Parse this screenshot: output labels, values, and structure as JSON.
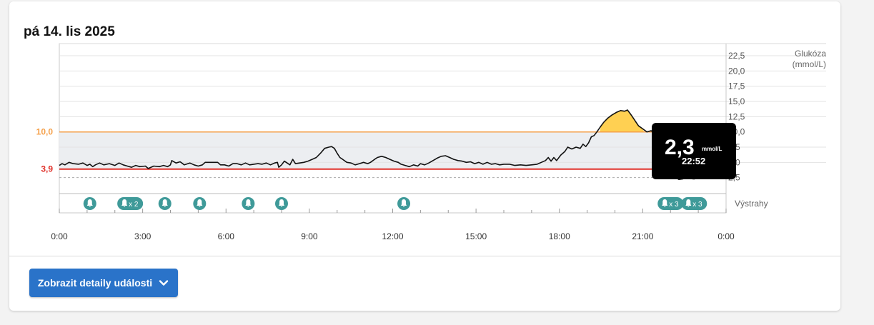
{
  "header": {
    "date_title": "pá 14. lis 2025"
  },
  "button": {
    "label": "Zobrazit detaily události"
  },
  "tooltip": {
    "value": "2,3",
    "unit": "mmol/L",
    "time": "22:52"
  },
  "colors": {
    "range_fill": "#eceef1",
    "high_line": "#f5a04a",
    "low_line": "#e0312a",
    "high_fill": "#ffd052",
    "low_fill": "#f58a80",
    "alert_badge": "#3f9a99",
    "trace": "#111111"
  },
  "chart_data": {
    "type": "line",
    "title": "",
    "xlabel": "",
    "ylabel": "Glukóza (mmol/L)",
    "x_ticks": [
      "0:00",
      "3:00",
      "6:00",
      "9:00",
      "12:00",
      "15:00",
      "18:00",
      "21:00",
      "0:00"
    ],
    "y_ticks": [
      "22,5",
      "20,0",
      "17,5",
      "15,0",
      "12,5",
      "10,0",
      "7,5",
      "5,0",
      "2,5"
    ],
    "y_tick_values": [
      22.5,
      20.0,
      17.5,
      15.0,
      12.5,
      10.0,
      7.5,
      5.0,
      2.5
    ],
    "xlim": [
      0,
      24
    ],
    "ylim": [
      0,
      24.5
    ],
    "target_range": {
      "low": 3.9,
      "high": 10.0,
      "low_label": "3,9",
      "high_label": "10,0"
    },
    "alerts_label": "Výstrahy",
    "alerts": [
      {
        "t": 1.1,
        "count": ""
      },
      {
        "t": 2.55,
        "count": "x 2"
      },
      {
        "t": 3.8,
        "count": ""
      },
      {
        "t": 5.05,
        "count": ""
      },
      {
        "t": 6.8,
        "count": ""
      },
      {
        "t": 8.0,
        "count": ""
      },
      {
        "t": 12.4,
        "count": ""
      },
      {
        "t": 22.0,
        "count": "x 3"
      },
      {
        "t": 22.85,
        "count": "x 3"
      }
    ],
    "series": [
      {
        "points": [
          [
            0.0,
            4.5
          ],
          [
            0.1,
            4.8
          ],
          [
            0.2,
            4.6
          ],
          [
            0.35,
            5.0
          ],
          [
            0.5,
            4.8
          ],
          [
            0.7,
            4.7
          ],
          [
            0.85,
            4.9
          ],
          [
            1.0,
            4.5
          ],
          [
            1.1,
            4.7
          ],
          [
            1.2,
            4.3
          ],
          [
            1.3,
            4.6
          ],
          [
            1.45,
            4.9
          ],
          [
            1.6,
            4.6
          ],
          [
            1.8,
            4.8
          ],
          [
            2.0,
            4.5
          ],
          [
            2.15,
            4.9
          ],
          [
            2.3,
            4.6
          ],
          [
            2.45,
            4.4
          ],
          [
            2.6,
            4.2
          ],
          [
            2.75,
            4.5
          ],
          [
            2.9,
            4.3
          ],
          [
            3.1,
            4.4
          ],
          [
            3.2,
            4.0
          ],
          [
            3.4,
            4.4
          ],
          [
            3.6,
            4.3
          ],
          [
            3.75,
            4.5
          ],
          [
            3.9,
            4.3
          ],
          [
            4.0,
            4.6
          ],
          [
            4.05,
            5.3
          ],
          [
            4.2,
            4.9
          ],
          [
            4.35,
            5.1
          ],
          [
            4.5,
            4.6
          ],
          [
            4.7,
            4.9
          ],
          [
            4.85,
            4.6
          ],
          [
            5.0,
            4.4
          ],
          [
            5.15,
            4.6
          ],
          [
            5.25,
            5.0
          ],
          [
            5.5,
            5.0
          ],
          [
            5.7,
            5.0
          ],
          [
            5.8,
            4.6
          ],
          [
            5.95,
            4.6
          ],
          [
            6.1,
            4.4
          ],
          [
            6.25,
            4.8
          ],
          [
            6.4,
            4.8
          ],
          [
            6.55,
            4.6
          ],
          [
            6.7,
            4.9
          ],
          [
            6.85,
            4.6
          ],
          [
            7.0,
            4.7
          ],
          [
            7.15,
            4.8
          ],
          [
            7.3,
            4.7
          ],
          [
            7.45,
            4.9
          ],
          [
            7.6,
            4.6
          ],
          [
            7.75,
            4.9
          ],
          [
            7.85,
            5.0
          ],
          [
            7.9,
            4.2
          ],
          [
            8.0,
            4.6
          ],
          [
            8.1,
            5.2
          ],
          [
            8.2,
            4.9
          ],
          [
            8.3,
            4.6
          ],
          [
            8.4,
            5.5
          ],
          [
            8.5,
            4.8
          ],
          [
            8.65,
            4.9
          ],
          [
            8.8,
            5.0
          ],
          [
            8.95,
            5.2
          ],
          [
            9.1,
            5.5
          ],
          [
            9.25,
            5.8
          ],
          [
            9.4,
            6.5
          ],
          [
            9.55,
            7.3
          ],
          [
            9.7,
            7.5
          ],
          [
            9.8,
            7.6
          ],
          [
            9.9,
            7.3
          ],
          [
            10.0,
            6.5
          ],
          [
            10.1,
            5.8
          ],
          [
            10.2,
            5.5
          ],
          [
            10.35,
            5.0
          ],
          [
            10.5,
            4.9
          ],
          [
            10.65,
            4.6
          ],
          [
            10.8,
            4.8
          ],
          [
            10.95,
            5.0
          ],
          [
            11.1,
            4.8
          ],
          [
            11.2,
            5.0
          ],
          [
            11.35,
            5.5
          ],
          [
            11.45,
            5.8
          ],
          [
            11.6,
            6.0
          ],
          [
            11.75,
            5.8
          ],
          [
            11.9,
            5.5
          ],
          [
            12.05,
            5.2
          ],
          [
            12.2,
            5.0
          ],
          [
            12.3,
            4.7
          ],
          [
            12.45,
            4.5
          ],
          [
            12.6,
            4.3
          ],
          [
            12.75,
            4.6
          ],
          [
            12.9,
            4.4
          ],
          [
            13.0,
            4.8
          ],
          [
            13.15,
            4.6
          ],
          [
            13.3,
            4.9
          ],
          [
            13.45,
            5.3
          ],
          [
            13.6,
            5.7
          ],
          [
            13.75,
            6.0
          ],
          [
            13.9,
            6.1
          ],
          [
            14.05,
            5.8
          ],
          [
            14.2,
            5.5
          ],
          [
            14.35,
            5.3
          ],
          [
            14.5,
            5.2
          ],
          [
            14.65,
            5.0
          ],
          [
            14.8,
            5.1
          ],
          [
            14.95,
            4.8
          ],
          [
            15.1,
            5.0
          ],
          [
            15.25,
            4.7
          ],
          [
            15.4,
            5.0
          ],
          [
            15.55,
            4.7
          ],
          [
            15.7,
            4.8
          ],
          [
            15.85,
            4.6
          ],
          [
            16.0,
            4.7
          ],
          [
            16.2,
            4.7
          ],
          [
            16.4,
            4.5
          ],
          [
            16.6,
            4.6
          ],
          [
            16.8,
            4.5
          ],
          [
            17.0,
            4.6
          ],
          [
            17.2,
            4.7
          ],
          [
            17.35,
            5.0
          ],
          [
            17.5,
            5.3
          ],
          [
            17.6,
            5.8
          ],
          [
            17.7,
            5.2
          ],
          [
            17.8,
            5.8
          ],
          [
            17.9,
            5.3
          ],
          [
            18.05,
            6.2
          ],
          [
            18.2,
            6.8
          ],
          [
            18.3,
            7.5
          ],
          [
            18.45,
            7.2
          ],
          [
            18.6,
            7.5
          ],
          [
            18.75,
            7.3
          ],
          [
            18.85,
            8.0
          ],
          [
            18.95,
            7.6
          ],
          [
            19.05,
            8.2
          ],
          [
            19.15,
            9.2
          ],
          [
            19.25,
            9.4
          ],
          [
            19.35,
            10.0
          ],
          [
            19.5,
            11.0
          ],
          [
            19.6,
            11.6
          ],
          [
            19.75,
            12.3
          ],
          [
            19.9,
            12.8
          ],
          [
            20.05,
            13.2
          ],
          [
            20.2,
            13.5
          ],
          [
            20.35,
            13.4
          ],
          [
            20.45,
            13.6
          ],
          [
            20.55,
            13.0
          ],
          [
            20.7,
            12.0
          ],
          [
            20.85,
            11.0
          ],
          [
            21.0,
            10.5
          ],
          [
            21.15,
            10.0
          ],
          [
            21.3,
            10.2
          ],
          [
            21.45,
            9.8
          ],
          [
            21.55,
            9.5
          ],
          [
            21.65,
            9.2
          ],
          [
            21.75,
            9.0
          ],
          [
            21.85,
            7.5
          ],
          [
            21.95,
            5.5
          ],
          [
            22.05,
            3.8
          ],
          [
            22.15,
            2.6
          ],
          [
            22.3,
            2.2
          ],
          [
            22.45,
            2.3
          ],
          [
            22.55,
            2.9
          ],
          [
            22.65,
            3.5
          ],
          [
            22.72,
            2.8
          ],
          [
            22.8,
            2.3
          ],
          [
            22.87,
            2.3
          ],
          [
            22.95,
            2.6
          ],
          [
            23.05,
            3.4
          ]
        ]
      }
    ]
  }
}
